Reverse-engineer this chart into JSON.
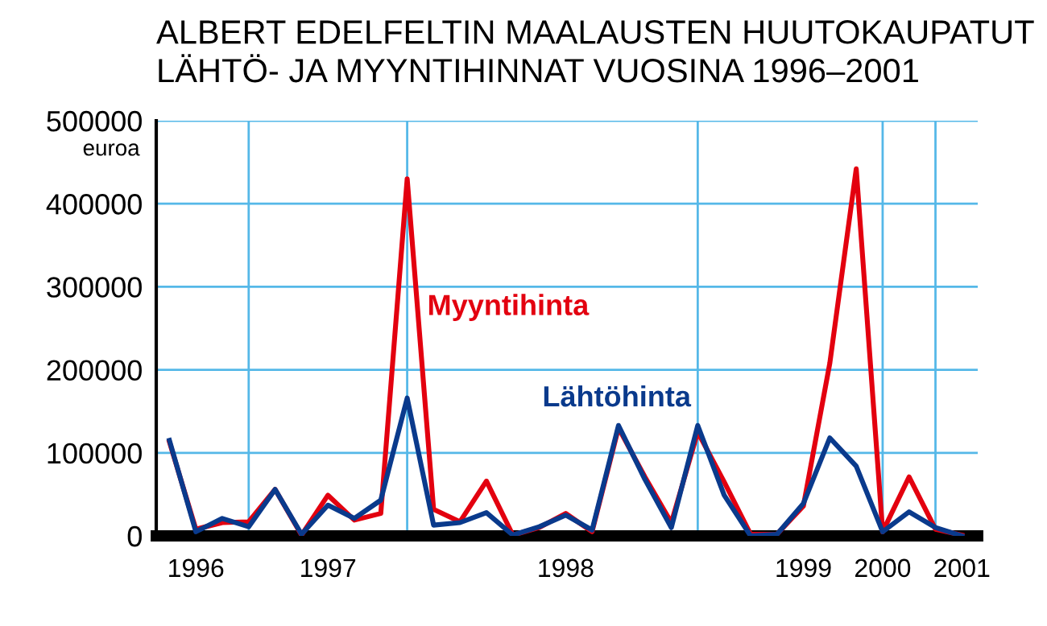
{
  "chart_data": {
    "type": "line",
    "title": "ALBERT EDELFELTIN MAALAUSTEN HUUTOKAUPATUT\nLÄHTÖ- JA MYYNTIHINNAT VUOSINA 1996–2001",
    "ylabel": "euroa",
    "categories": [
      null,
      "1996",
      null,
      null,
      null,
      null,
      "1997",
      null,
      null,
      null,
      null,
      null,
      null,
      null,
      null,
      "1998",
      null,
      null,
      null,
      null,
      null,
      null,
      null,
      null,
      "1999",
      null,
      null,
      "2000",
      null,
      null,
      "2001"
    ],
    "ylim": [
      0,
      500000
    ],
    "yticks": [
      0,
      100000,
      200000,
      300000,
      400000,
      500000
    ],
    "grid": true,
    "legend": false,
    "line_style": "solid",
    "series": [
      {
        "name": "Myyntihinta",
        "color": "#e3000f",
        "values": [
          113000,
          8000,
          16000,
          17000,
          56000,
          1000,
          49000,
          19000,
          27000,
          430000,
          32000,
          17000,
          66000,
          1000,
          10000,
          27000,
          5000,
          130000,
          71000,
          16000,
          125000,
          65000,
          2000,
          2000,
          36000,
          208000,
          442000,
          5000,
          71000,
          8000,
          1000
        ]
      },
      {
        "name": "Lähtöhinta",
        "color": "#0a3a8c",
        "values": [
          115000,
          5000,
          21000,
          11000,
          56000,
          2000,
          37000,
          21000,
          43000,
          166000,
          13000,
          16000,
          28000,
          1000,
          11000,
          25000,
          7000,
          133000,
          68000,
          10000,
          133000,
          49000,
          0,
          2000,
          39000,
          118000,
          84000,
          5000,
          29000,
          10000,
          0
        ]
      }
    ]
  }
}
